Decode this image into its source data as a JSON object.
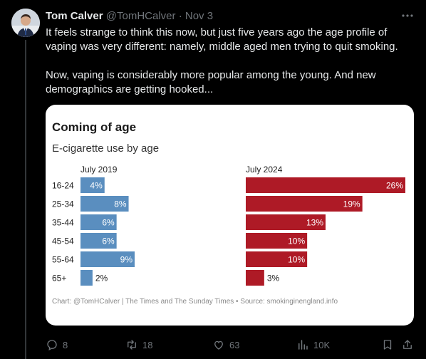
{
  "tweet": {
    "author_name": "Tom Calver",
    "author_handle": "@TomHCalver",
    "separator": "·",
    "date": "Nov 3",
    "paragraphs": [
      "It feels strange to think this now, but just five years ago the age profile of vaping was very different: namely, middle aged men trying to quit smoking.",
      "Now, vaping is considerably more popular among the young. And new demographics are getting hooked..."
    ]
  },
  "actions": {
    "replies": "8",
    "reposts": "18",
    "likes": "63",
    "views": "10K"
  },
  "icons": {
    "more": "more-icon",
    "reply": "reply-icon",
    "repost": "repost-icon",
    "like": "heart-icon",
    "views": "views-icon",
    "bookmark": "bookmark-icon",
    "share": "share-icon"
  },
  "colors": {
    "series_2019": "#5a8ebf",
    "series_2024": "#ae1a26",
    "muted_text": "#71767b"
  },
  "chart_data": {
    "type": "bar",
    "title": "Coming of age",
    "subtitle": "E-cigarette use by age",
    "categories": [
      "16-24",
      "25-34",
      "35-44",
      "45-54",
      "55-64",
      "65+"
    ],
    "series": [
      {
        "name": "July 2019",
        "values": [
          4,
          8,
          6,
          6,
          9,
          2
        ],
        "labels": [
          "4%",
          "8%",
          "6%",
          "6%",
          "9%",
          "2%"
        ]
      },
      {
        "name": "July 2024",
        "values": [
          26,
          19,
          13,
          10,
          10,
          3
        ],
        "labels": [
          "26%",
          "19%",
          "13%",
          "10%",
          "10%",
          "3%"
        ]
      }
    ],
    "unit": "%",
    "orientation": "horizontal",
    "source": "Chart: @TomHCalver | The Times and The Sunday Times • Source: smokinginengland.info"
  }
}
